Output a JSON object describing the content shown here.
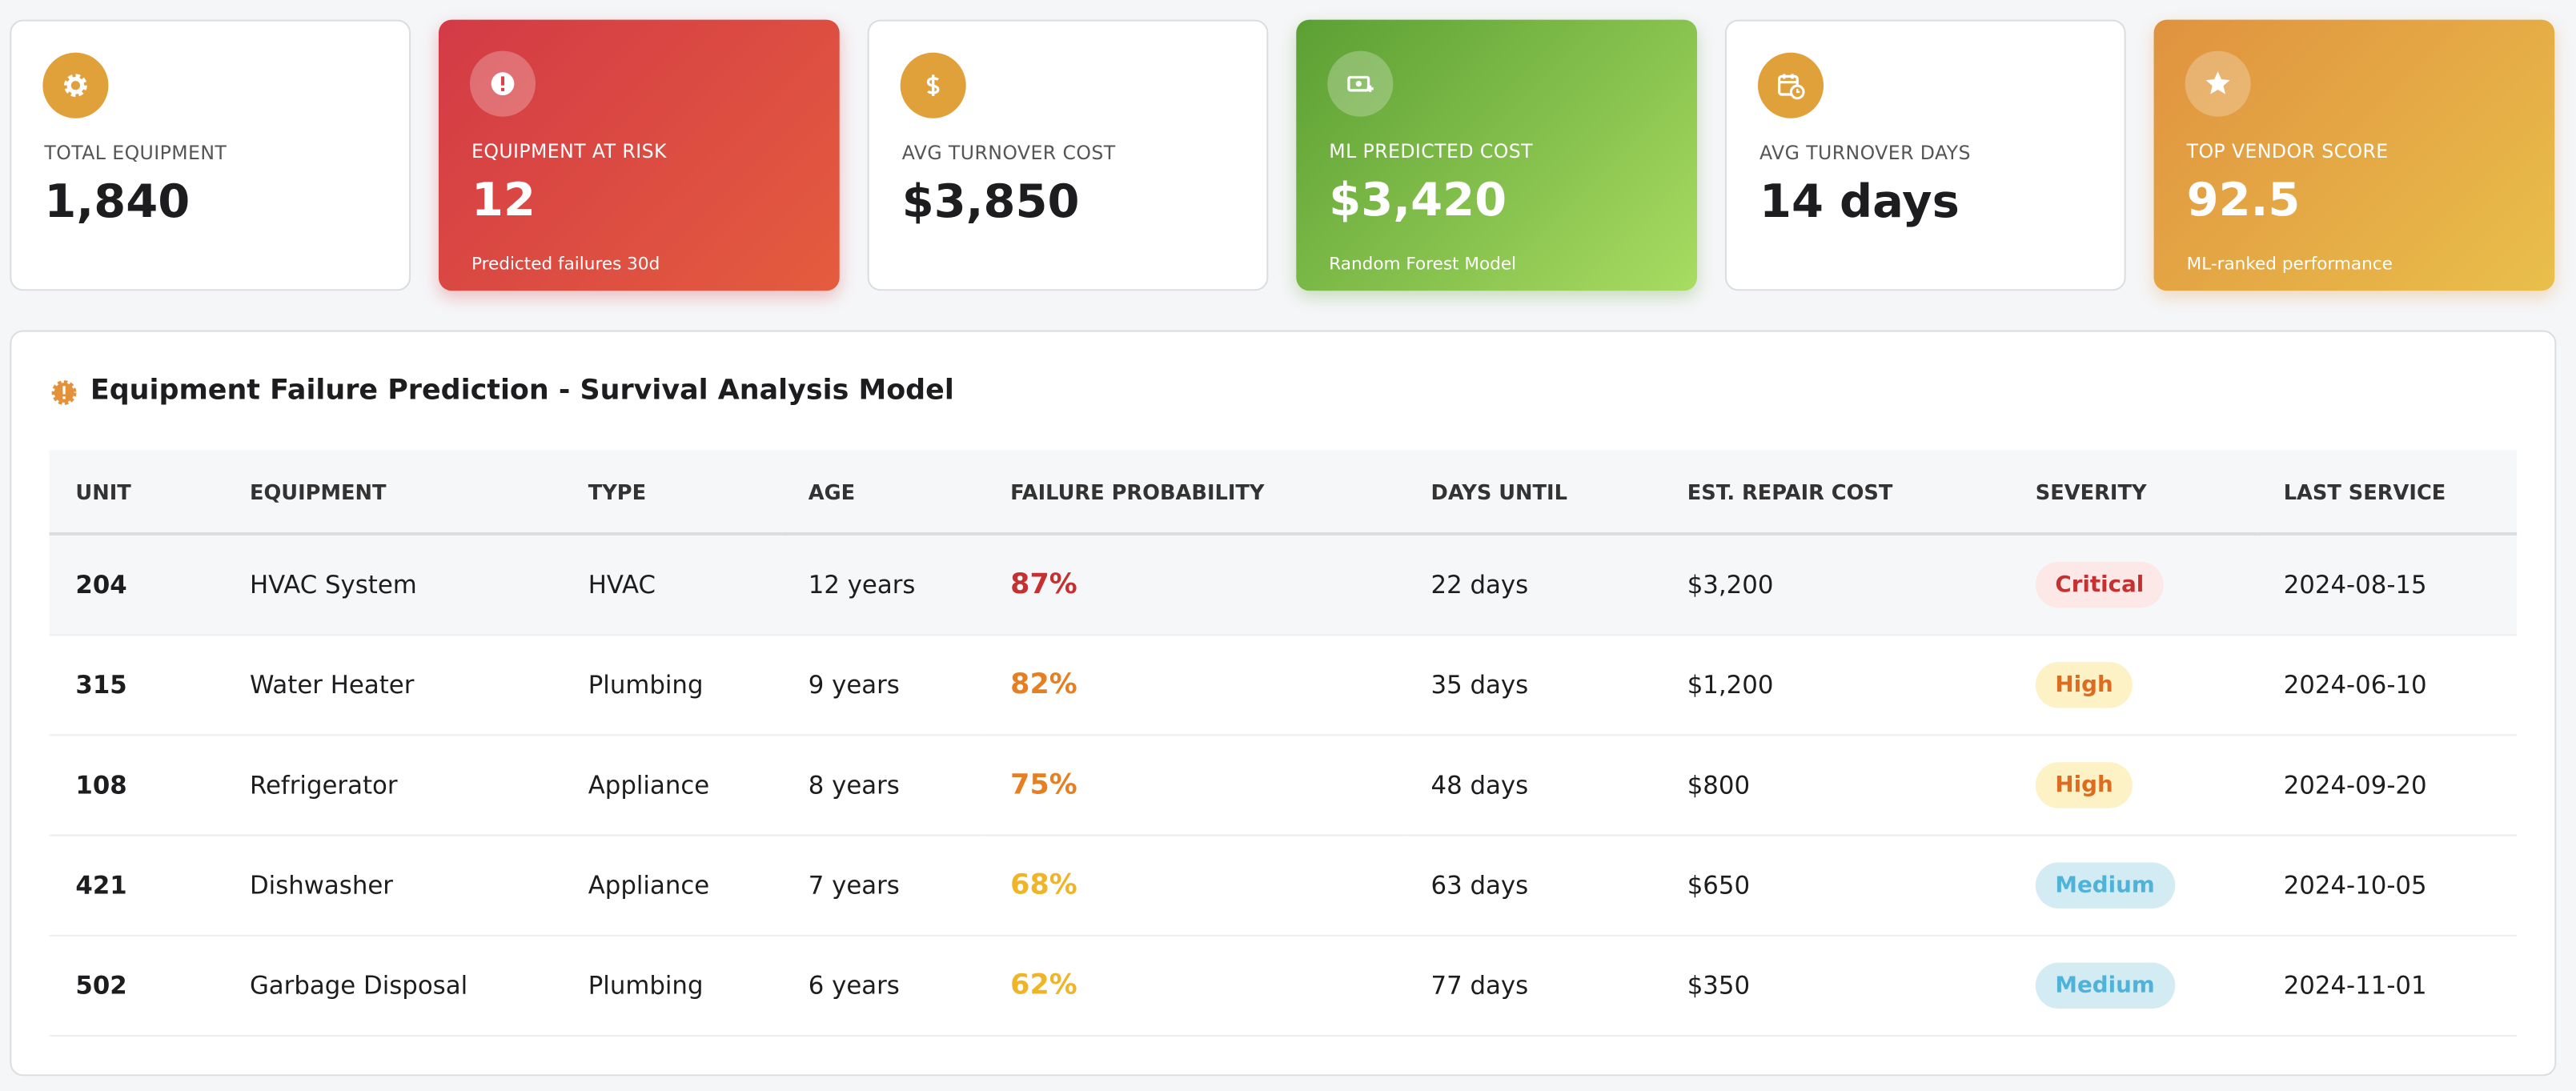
{
  "cards": [
    {
      "label": "TOTAL EQUIPMENT",
      "value": "1,840"
    },
    {
      "label": "EQUIPMENT AT RISK",
      "value": "12",
      "subtitle": "Predicted failures 30d"
    },
    {
      "label": "AVG TURNOVER COST",
      "value": "$3,850"
    },
    {
      "label": "ML PREDICTED COST",
      "value": "$3,420",
      "subtitle": "Random Forest Model"
    },
    {
      "label": "AVG TURNOVER DAYS",
      "value": "14 days"
    },
    {
      "label": "TOP VENDOR SCORE",
      "value": "92.5",
      "subtitle": "ML-ranked performance"
    }
  ],
  "table": {
    "title": "Equipment Failure Prediction - Survival Analysis Model",
    "columns": [
      "UNIT",
      "EQUIPMENT",
      "TYPE",
      "AGE",
      "FAILURE PROBABILITY",
      "DAYS UNTIL",
      "EST. REPAIR COST",
      "SEVERITY",
      "LAST SERVICE"
    ],
    "rows": [
      {
        "cells": [
          "204",
          "HVAC System",
          "HVAC",
          "12 years",
          "87%",
          "22 days",
          "$3,200",
          "Critical",
          "2024-08-15"
        ],
        "probability_color": "#c53030",
        "severity_color": "#c53030",
        "severity_background": "#fde8e8"
      },
      {
        "cells": [
          "315",
          "Water Heater",
          "Plumbing",
          "9 years",
          "82%",
          "35 days",
          "$1,200",
          "High",
          "2024-06-10"
        ],
        "probability_color": "#e67e22",
        "severity_color": "#dd6b20",
        "severity_background": "#fdf1c6"
      },
      {
        "cells": [
          "108",
          "Refrigerator",
          "Appliance",
          "8 years",
          "75%",
          "48 days",
          "$800",
          "High",
          "2024-09-20"
        ],
        "probability_color": "#e67e22",
        "severity_color": "#dd6b20",
        "severity_background": "#fdf1c6"
      },
      {
        "cells": [
          "421",
          "Dishwasher",
          "Appliance",
          "7 years",
          "68%",
          "63 days",
          "$650",
          "Medium",
          "2024-10-05"
        ],
        "probability_color": "#f0b429",
        "severity_color": "#4fb3d9",
        "severity_background": "#d3ebf3"
      },
      {
        "cells": [
          "502",
          "Garbage Disposal",
          "Plumbing",
          "6 years",
          "62%",
          "77 days",
          "$350",
          "Medium",
          "2024-11-01"
        ],
        "probability_color": "#f0b429",
        "severity_color": "#4fb3d9",
        "severity_background": "#d3ebf3"
      }
    ]
  }
}
